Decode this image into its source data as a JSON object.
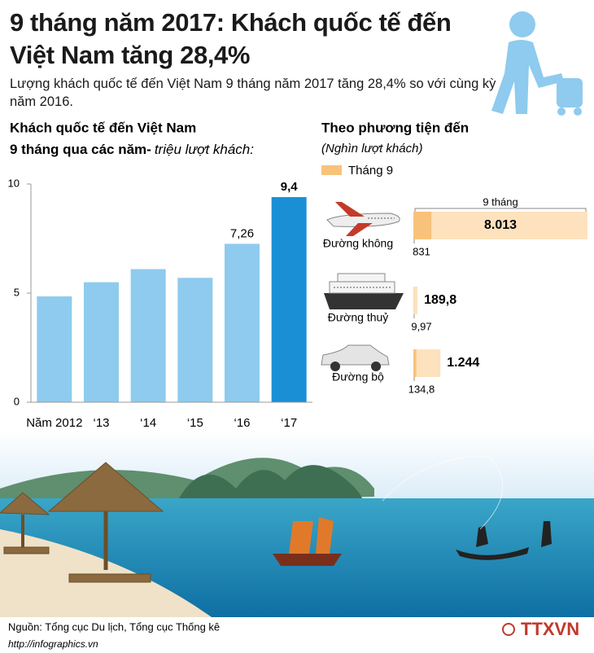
{
  "header": {
    "title": "9 tháng năm 2017: Khách quốc tế đến Việt Nam tăng 28,4%",
    "subtitle": "Lượng khách quốc tế đến Việt Nam 9 tháng năm 2017 tăng 28,4% so với cùng kỳ năm 2016."
  },
  "chart_data": [
    {
      "type": "bar",
      "title": "Khách quốc tế đến Việt Nam",
      "subtitle": "9 tháng qua các năm-",
      "unit": "triệu lượt khách:",
      "categories": [
        "Năm 2012",
        "‘13",
        "‘14",
        "‘15",
        "‘16",
        "‘17"
      ],
      "values": [
        4.85,
        5.5,
        6.1,
        5.7,
        7.26,
        9.4
      ],
      "value_labels": [
        null,
        null,
        null,
        null,
        "7,26",
        "9,4"
      ],
      "colors": [
        "#8ecbee",
        "#8ecbee",
        "#8ecbee",
        "#8ecbee",
        "#8ecbee",
        "#1b8fd6"
      ],
      "ylim": [
        0,
        10
      ],
      "yticks": [
        0,
        5,
        10
      ]
    },
    {
      "type": "hbar",
      "title": "Theo phương tiện đến",
      "unit": "(Nghìn lượt khách)",
      "categories": [
        "Đường không",
        "Đường thuỷ",
        "Đường bộ"
      ],
      "series": [
        {
          "name": "9 tháng",
          "color": "#fde2bd",
          "values": [
            8013,
            189.8,
            1244
          ],
          "value_labels": [
            "8.013",
            "189,8",
            "1.244"
          ]
        },
        {
          "name": "Tháng 9",
          "color": "#f9c27a",
          "values": [
            831,
            9.97,
            134.8
          ],
          "value_labels": [
            "831",
            "9,97",
            "134,8"
          ]
        }
      ]
    }
  ],
  "footer": {
    "source": "Nguồn: Tổng cục Du lịch, Tổng cục Thống kê",
    "url": "http://infographics.vn",
    "logo": "TTXVN"
  }
}
